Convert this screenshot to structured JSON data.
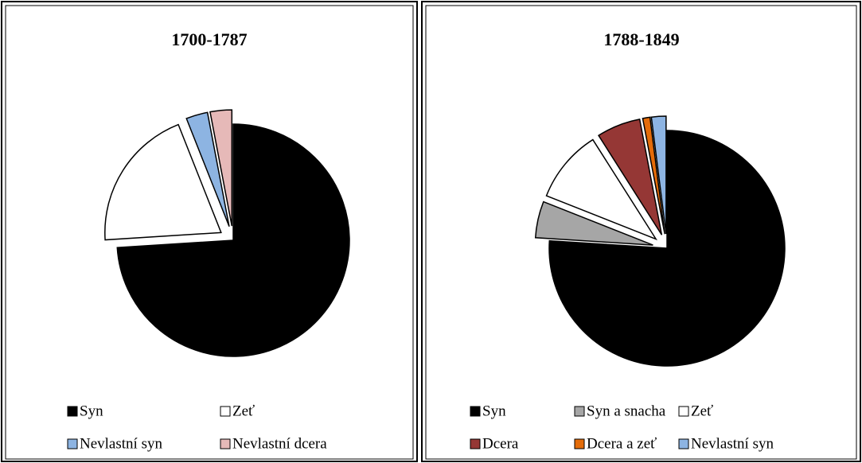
{
  "chart_data": [
    {
      "type": "pie",
      "title": "1700-1787",
      "categories": [
        "Syn",
        "Zeť",
        "Nevlastní syn",
        "Nevlastní dcera"
      ],
      "values": [
        74,
        20,
        3,
        3
      ],
      "colors": [
        "#000000",
        "#ffffff",
        "#8db4e2",
        "#e6b9b8"
      ]
    },
    {
      "type": "pie",
      "title": "1788-1849",
      "categories": [
        "Syn",
        "Syn a snacha",
        "Zeť",
        "Dcera",
        "Dcera a zeť",
        "Nevlastní syn"
      ],
      "values": [
        76,
        5,
        10,
        6,
        1,
        2
      ],
      "colors": [
        "#000000",
        "#a6a6a6",
        "#ffffff",
        "#953735",
        "#e46c0a",
        "#8db4e2"
      ]
    }
  ]
}
